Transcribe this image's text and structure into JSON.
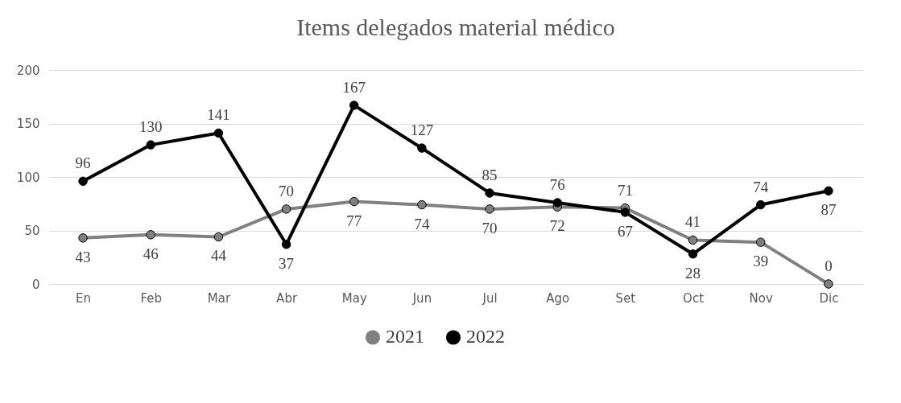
{
  "chart_data": {
    "type": "line",
    "title": "Items delegados material médico",
    "categories": [
      "En",
      "Feb",
      "Mar",
      "Abr",
      "May",
      "Jun",
      "Jul",
      "Ago",
      "Set",
      "Oct",
      "Nov",
      "Dic"
    ],
    "series": [
      {
        "name": "2021",
        "color": "#808080",
        "values": [
          43,
          46,
          44,
          70,
          77,
          74,
          70,
          72,
          71,
          41,
          39,
          0
        ]
      },
      {
        "name": "2022",
        "color": "#000000",
        "values": [
          96,
          130,
          141,
          37,
          167,
          127,
          85,
          76,
          67,
          28,
          74,
          87
        ]
      }
    ],
    "ylim": [
      0,
      200
    ],
    "yticks": [
      0,
      50,
      100,
      150,
      200
    ],
    "grid": "y",
    "legend": "bottom",
    "marker": "circle",
    "line_style": "solid",
    "data_labels": true
  }
}
